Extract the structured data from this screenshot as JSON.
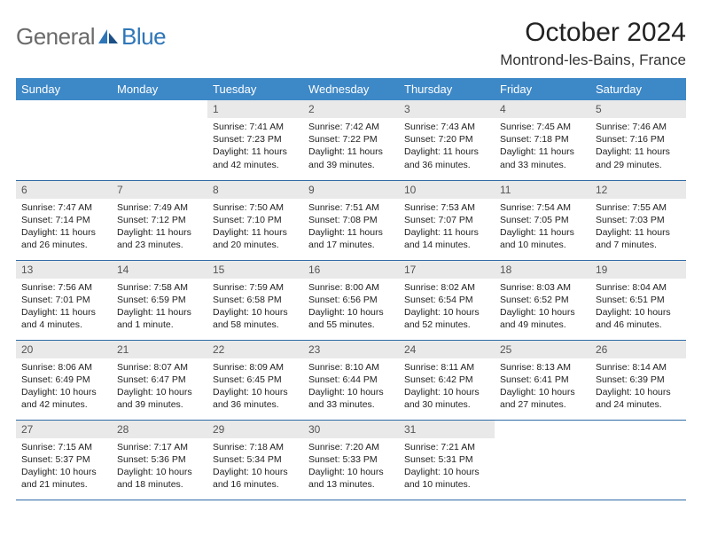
{
  "logo": {
    "word1": "General",
    "word2": "Blue"
  },
  "title": "October 2024",
  "location": "Montrond-les-Bains, France",
  "colors": {
    "header_bg": "#3d88c7",
    "header_text": "#ffffff",
    "daynum_bg": "#e9e9e9",
    "row_border": "#2f6aa5",
    "logo_gray": "#6b6b6b",
    "logo_blue": "#2f76b8"
  },
  "day_names": [
    "Sunday",
    "Monday",
    "Tuesday",
    "Wednesday",
    "Thursday",
    "Friday",
    "Saturday"
  ],
  "weeks": [
    [
      {
        "n": "",
        "sr": "",
        "ss": "",
        "dl": ""
      },
      {
        "n": "",
        "sr": "",
        "ss": "",
        "dl": ""
      },
      {
        "n": "1",
        "sr": "Sunrise: 7:41 AM",
        "ss": "Sunset: 7:23 PM",
        "dl": "Daylight: 11 hours and 42 minutes."
      },
      {
        "n": "2",
        "sr": "Sunrise: 7:42 AM",
        "ss": "Sunset: 7:22 PM",
        "dl": "Daylight: 11 hours and 39 minutes."
      },
      {
        "n": "3",
        "sr": "Sunrise: 7:43 AM",
        "ss": "Sunset: 7:20 PM",
        "dl": "Daylight: 11 hours and 36 minutes."
      },
      {
        "n": "4",
        "sr": "Sunrise: 7:45 AM",
        "ss": "Sunset: 7:18 PM",
        "dl": "Daylight: 11 hours and 33 minutes."
      },
      {
        "n": "5",
        "sr": "Sunrise: 7:46 AM",
        "ss": "Sunset: 7:16 PM",
        "dl": "Daylight: 11 hours and 29 minutes."
      }
    ],
    [
      {
        "n": "6",
        "sr": "Sunrise: 7:47 AM",
        "ss": "Sunset: 7:14 PM",
        "dl": "Daylight: 11 hours and 26 minutes."
      },
      {
        "n": "7",
        "sr": "Sunrise: 7:49 AM",
        "ss": "Sunset: 7:12 PM",
        "dl": "Daylight: 11 hours and 23 minutes."
      },
      {
        "n": "8",
        "sr": "Sunrise: 7:50 AM",
        "ss": "Sunset: 7:10 PM",
        "dl": "Daylight: 11 hours and 20 minutes."
      },
      {
        "n": "9",
        "sr": "Sunrise: 7:51 AM",
        "ss": "Sunset: 7:08 PM",
        "dl": "Daylight: 11 hours and 17 minutes."
      },
      {
        "n": "10",
        "sr": "Sunrise: 7:53 AM",
        "ss": "Sunset: 7:07 PM",
        "dl": "Daylight: 11 hours and 14 minutes."
      },
      {
        "n": "11",
        "sr": "Sunrise: 7:54 AM",
        "ss": "Sunset: 7:05 PM",
        "dl": "Daylight: 11 hours and 10 minutes."
      },
      {
        "n": "12",
        "sr": "Sunrise: 7:55 AM",
        "ss": "Sunset: 7:03 PM",
        "dl": "Daylight: 11 hours and 7 minutes."
      }
    ],
    [
      {
        "n": "13",
        "sr": "Sunrise: 7:56 AM",
        "ss": "Sunset: 7:01 PM",
        "dl": "Daylight: 11 hours and 4 minutes."
      },
      {
        "n": "14",
        "sr": "Sunrise: 7:58 AM",
        "ss": "Sunset: 6:59 PM",
        "dl": "Daylight: 11 hours and 1 minute."
      },
      {
        "n": "15",
        "sr": "Sunrise: 7:59 AM",
        "ss": "Sunset: 6:58 PM",
        "dl": "Daylight: 10 hours and 58 minutes."
      },
      {
        "n": "16",
        "sr": "Sunrise: 8:00 AM",
        "ss": "Sunset: 6:56 PM",
        "dl": "Daylight: 10 hours and 55 minutes."
      },
      {
        "n": "17",
        "sr": "Sunrise: 8:02 AM",
        "ss": "Sunset: 6:54 PM",
        "dl": "Daylight: 10 hours and 52 minutes."
      },
      {
        "n": "18",
        "sr": "Sunrise: 8:03 AM",
        "ss": "Sunset: 6:52 PM",
        "dl": "Daylight: 10 hours and 49 minutes."
      },
      {
        "n": "19",
        "sr": "Sunrise: 8:04 AM",
        "ss": "Sunset: 6:51 PM",
        "dl": "Daylight: 10 hours and 46 minutes."
      }
    ],
    [
      {
        "n": "20",
        "sr": "Sunrise: 8:06 AM",
        "ss": "Sunset: 6:49 PM",
        "dl": "Daylight: 10 hours and 42 minutes."
      },
      {
        "n": "21",
        "sr": "Sunrise: 8:07 AM",
        "ss": "Sunset: 6:47 PM",
        "dl": "Daylight: 10 hours and 39 minutes."
      },
      {
        "n": "22",
        "sr": "Sunrise: 8:09 AM",
        "ss": "Sunset: 6:45 PM",
        "dl": "Daylight: 10 hours and 36 minutes."
      },
      {
        "n": "23",
        "sr": "Sunrise: 8:10 AM",
        "ss": "Sunset: 6:44 PM",
        "dl": "Daylight: 10 hours and 33 minutes."
      },
      {
        "n": "24",
        "sr": "Sunrise: 8:11 AM",
        "ss": "Sunset: 6:42 PM",
        "dl": "Daylight: 10 hours and 30 minutes."
      },
      {
        "n": "25",
        "sr": "Sunrise: 8:13 AM",
        "ss": "Sunset: 6:41 PM",
        "dl": "Daylight: 10 hours and 27 minutes."
      },
      {
        "n": "26",
        "sr": "Sunrise: 8:14 AM",
        "ss": "Sunset: 6:39 PM",
        "dl": "Daylight: 10 hours and 24 minutes."
      }
    ],
    [
      {
        "n": "27",
        "sr": "Sunrise: 7:15 AM",
        "ss": "Sunset: 5:37 PM",
        "dl": "Daylight: 10 hours and 21 minutes."
      },
      {
        "n": "28",
        "sr": "Sunrise: 7:17 AM",
        "ss": "Sunset: 5:36 PM",
        "dl": "Daylight: 10 hours and 18 minutes."
      },
      {
        "n": "29",
        "sr": "Sunrise: 7:18 AM",
        "ss": "Sunset: 5:34 PM",
        "dl": "Daylight: 10 hours and 16 minutes."
      },
      {
        "n": "30",
        "sr": "Sunrise: 7:20 AM",
        "ss": "Sunset: 5:33 PM",
        "dl": "Daylight: 10 hours and 13 minutes."
      },
      {
        "n": "31",
        "sr": "Sunrise: 7:21 AM",
        "ss": "Sunset: 5:31 PM",
        "dl": "Daylight: 10 hours and 10 minutes."
      },
      {
        "n": "",
        "sr": "",
        "ss": "",
        "dl": ""
      },
      {
        "n": "",
        "sr": "",
        "ss": "",
        "dl": ""
      }
    ]
  ]
}
